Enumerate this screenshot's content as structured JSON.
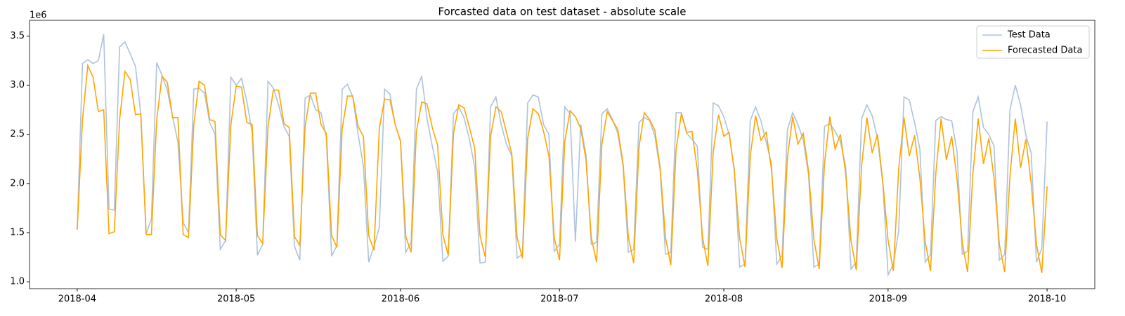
{
  "chart_data": {
    "type": "line",
    "title": "Forcasted data on test dataset - absolute scale",
    "y_offset_label": "1e6",
    "xlim": [
      -9,
      192
    ],
    "xticks": [
      {
        "value": 0,
        "label": "2018-04"
      },
      {
        "value": 30,
        "label": "2018-05"
      },
      {
        "value": 61,
        "label": "2018-06"
      },
      {
        "value": 91,
        "label": "2018-07"
      },
      {
        "value": 122,
        "label": "2018-08"
      },
      {
        "value": 153,
        "label": "2018-09"
      },
      {
        "value": 183,
        "label": "2018-10"
      }
    ],
    "ylim": [
      0.93,
      3.66
    ],
    "yticks": [
      {
        "value": 1,
        "label": "1.0"
      },
      {
        "value": 1.5,
        "label": "1.5"
      },
      {
        "value": 2,
        "label": "2.0"
      },
      {
        "value": 2.5,
        "label": "2.5"
      },
      {
        "value": 3,
        "label": "3.0"
      },
      {
        "value": 3.5,
        "label": "3.5"
      }
    ],
    "legend": "upper right",
    "series": [
      {
        "name": "Test Data",
        "color": "#aec2dd",
        "values": [
          1.53,
          3.22,
          3.26,
          3.22,
          3.25,
          3.52,
          1.74,
          1.73,
          3.39,
          3.44,
          3.32,
          3.19,
          2.7,
          1.49,
          1.64,
          3.23,
          3.1,
          2.95,
          2.68,
          2.42,
          1.6,
          1.5,
          2.96,
          2.97,
          2.92,
          2.62,
          2.5,
          1.33,
          1.42,
          3.08,
          3.0,
          3.07,
          2.84,
          2.52,
          1.27,
          1.38,
          3.04,
          2.97,
          2.8,
          2.58,
          2.48,
          1.36,
          1.22,
          2.87,
          2.9,
          2.75,
          2.72,
          2.47,
          1.26,
          1.37,
          2.96,
          3.01,
          2.88,
          2.5,
          2.18,
          1.2,
          1.36,
          1.55,
          2.96,
          2.91,
          2.6,
          2.43,
          1.3,
          1.4,
          2.96,
          3.09,
          2.66,
          2.38,
          2.12,
          1.21,
          1.26,
          2.71,
          2.78,
          2.67,
          2.45,
          2.17,
          1.19,
          1.2,
          2.78,
          2.88,
          2.6,
          2.4,
          2.28,
          1.24,
          1.28,
          2.82,
          2.9,
          2.88,
          2.6,
          2.5,
          1.31,
          1.38,
          2.78,
          2.71,
          1.41,
          2.6,
          2.29,
          1.38,
          1.4,
          2.71,
          2.76,
          2.65,
          2.51,
          2.18,
          1.3,
          1.33,
          2.62,
          2.67,
          2.64,
          2.48,
          2.13,
          1.28,
          1.3,
          2.72,
          2.72,
          2.51,
          2.45,
          2.38,
          1.35,
          1.33,
          2.82,
          2.79,
          2.68,
          2.5,
          2.14,
          1.15,
          1.18,
          2.64,
          2.78,
          2.64,
          2.42,
          2.2,
          1.18,
          1.27,
          2.55,
          2.72,
          2.6,
          2.44,
          2.08,
          1.15,
          1.18,
          2.58,
          2.61,
          2.53,
          2.43,
          2.17,
          1.13,
          1.2,
          2.66,
          2.8,
          2.69,
          2.46,
          2.0,
          1.07,
          1.18,
          1.52,
          2.88,
          2.85,
          2.62,
          2.35,
          1.2,
          1.28,
          2.64,
          2.68,
          2.65,
          2.64,
          2.33,
          1.28,
          1.31,
          2.73,
          2.88,
          2.57,
          2.5,
          2.38,
          1.22,
          1.28,
          2.75,
          3.0,
          2.8,
          2.49,
          2.31,
          1.2,
          1.34,
          2.63
        ]
      },
      {
        "name": "Forecasted Data",
        "color": "#ffa500",
        "values": [
          1.53,
          2.65,
          3.2,
          3.08,
          2.73,
          2.75,
          1.49,
          1.51,
          2.65,
          3.14,
          3.06,
          2.7,
          2.71,
          1.48,
          1.48,
          2.65,
          3.09,
          3.03,
          2.67,
          2.67,
          1.48,
          1.45,
          2.6,
          3.04,
          3.0,
          2.65,
          2.63,
          1.48,
          1.42,
          2.6,
          2.99,
          2.98,
          2.62,
          2.6,
          1.47,
          1.39,
          2.58,
          2.95,
          2.95,
          2.61,
          2.57,
          1.46,
          1.37,
          2.58,
          2.92,
          2.92,
          2.6,
          2.51,
          1.47,
          1.35,
          2.56,
          2.89,
          2.89,
          2.58,
          2.48,
          1.47,
          1.32,
          2.56,
          2.86,
          2.85,
          2.6,
          2.43,
          1.46,
          1.3,
          2.53,
          2.83,
          2.81,
          2.57,
          2.39,
          1.48,
          1.27,
          2.51,
          2.8,
          2.77,
          2.57,
          2.36,
          1.47,
          1.25,
          2.48,
          2.78,
          2.73,
          2.52,
          2.3,
          1.45,
          1.24,
          2.46,
          2.76,
          2.71,
          2.53,
          2.28,
          1.45,
          1.22,
          2.43,
          2.74,
          2.68,
          2.56,
          2.24,
          1.45,
          1.2,
          2.4,
          2.73,
          2.64,
          2.55,
          2.2,
          1.45,
          1.19,
          2.37,
          2.72,
          2.65,
          2.54,
          2.15,
          1.45,
          1.17,
          2.35,
          2.71,
          2.52,
          2.53,
          2.14,
          1.45,
          1.16,
          2.32,
          2.7,
          2.48,
          2.52,
          2.12,
          1.44,
          1.15,
          2.28,
          2.69,
          2.44,
          2.52,
          2.14,
          1.44,
          1.14,
          2.26,
          2.68,
          2.4,
          2.51,
          2.12,
          1.43,
          1.13,
          2.2,
          2.68,
          2.35,
          2.5,
          2.1,
          1.42,
          1.12,
          2.18,
          2.67,
          2.31,
          2.5,
          2.02,
          1.42,
          1.11,
          2.15,
          2.67,
          2.28,
          2.49,
          2.05,
          1.41,
          1.11,
          2.1,
          2.66,
          2.24,
          2.48,
          2.05,
          1.4,
          1.1,
          2.1,
          2.66,
          2.2,
          2.46,
          2.05,
          1.38,
          1.1,
          2.08,
          2.66,
          2.16,
          2.45,
          2.0,
          1.38,
          1.09,
          1.97
        ]
      }
    ]
  }
}
